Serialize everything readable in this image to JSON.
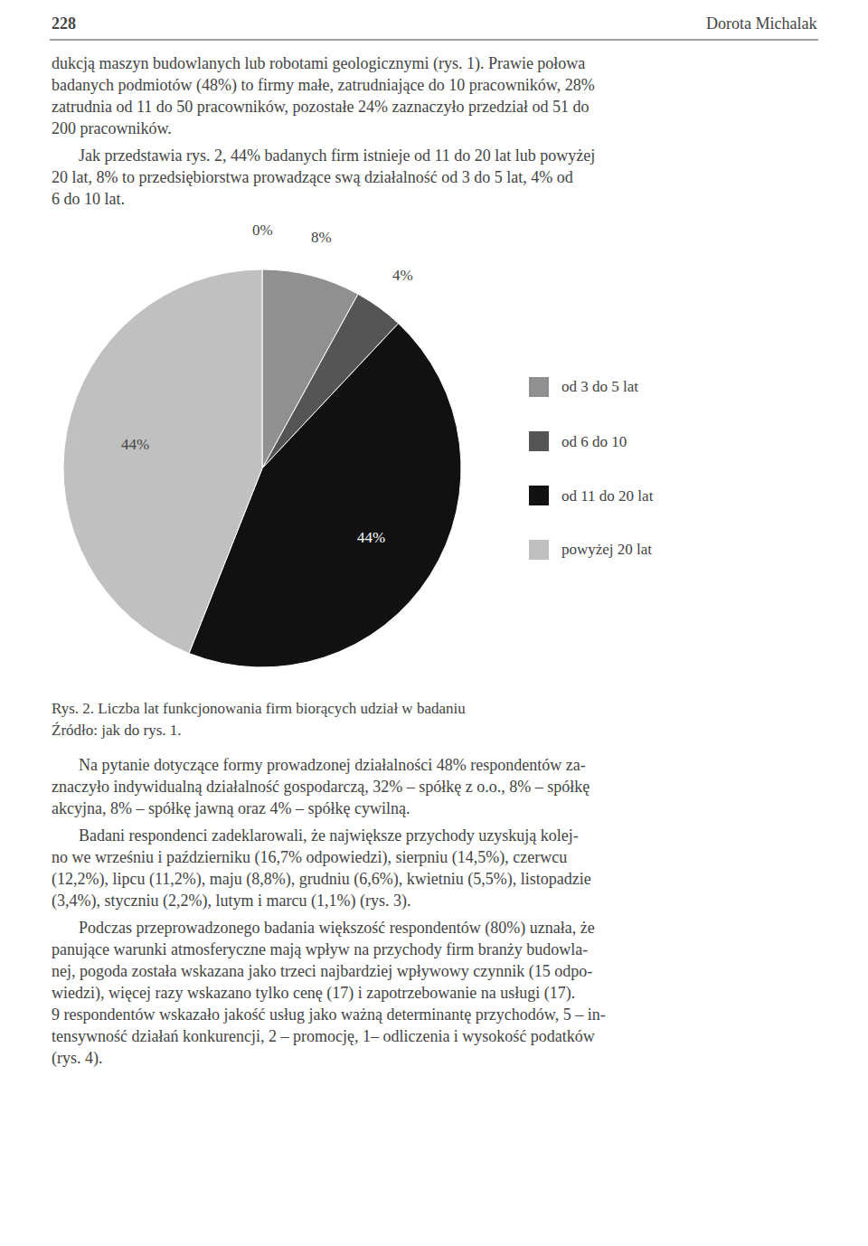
{
  "chart_data": {
    "type": "pie",
    "title": "Rys. 2. Liczba lat funkcjonowania firm biorących udział w badaniu",
    "subtitle": "Źródło: jak do rys. 1.",
    "categories": [
      null,
      "od 3 do 5 lat",
      "od 6 do 10",
      "od 11 do 20 lat",
      "powyżej 20 lat"
    ],
    "values": [
      0,
      8,
      4,
      44,
      44
    ],
    "value_labels": [
      "0%",
      "8%",
      "4%",
      "44%",
      "44%"
    ],
    "colors": [
      "#b8b8b8",
      "#909090",
      "#555555",
      "#111111",
      "#c0c0c0"
    ],
    "data_labels": true,
    "legend": "right",
    "annotations": [
      [
        "228",
        "Dorota Michalak"
      ],
      [
        "dukcją maszyn budowlanych lub robotami geologicznymi (rys. 1). Prawie połowa",
        "badanych podmiotów (48%) to firmy małe, zatrudniające do 10 pracowników, 28%",
        "zatrudnia od 11 do 50 pracowników, pozostałe 24% zaznaczyło przedział od 51 do",
        "200 pracowników."
      ],
      [
        "Jak przedstawia rys. 2, 44% badanych firm istnieje od 11 do 20 lat lub powyżej",
        "20 lat, 8% to przedsiębiorstwa prowadzące swą działalność od 3 do 5 lat, 4% od",
        "6 do 10 lat."
      ],
      [
        "Na pytanie dotyczące formy prowadzonej działalności 48% respondentów za-",
        "znaczyło indywidualną działalność gospodarczą, 32% – spółkę z o.o., 8% – spółkę",
        "akcyjna, 8% – spółkę jawną oraz 4% – spółkę cywilną."
      ],
      [
        "Badani respondenci zadeklarowali, że największe przychody uzyskują kolej-",
        "no we wrześniu i październiku (16,7% odpowiedzi), sierpniu (14,5%), czerwcu",
        "(12,2%), lipcu (11,2%), maju (8,8%), grudniu (6,6%), kwietniu (5,5%), listopadzie",
        "(3,4%), styczniu (2,2%), lutym i marcu (1,1%) (rys. 3)."
      ],
      [
        "Podczas przeprowadzonego badania większość respondentów (80%) uznała, że",
        "panujące warunki atmosferyczne mają wpływ na przychody firm branży budowla-",
        "nej, pogoda została wskazana jako trzeci najbardziej wpływowy czynnik (15 odpo-",
        "wiedzi), więcej razy wskazano tylko cenę (17) i zapotrzebowanie na usługi (17).",
        "9 respondentów wskazało jakość usług jako ważną determinantę przychodów, 5 – in-",
        "tensywność działań konkurencji, 2 – promocję, 1– odliczenia i wysokość podatków",
        "(rys. 4)."
      ]
    ]
  }
}
